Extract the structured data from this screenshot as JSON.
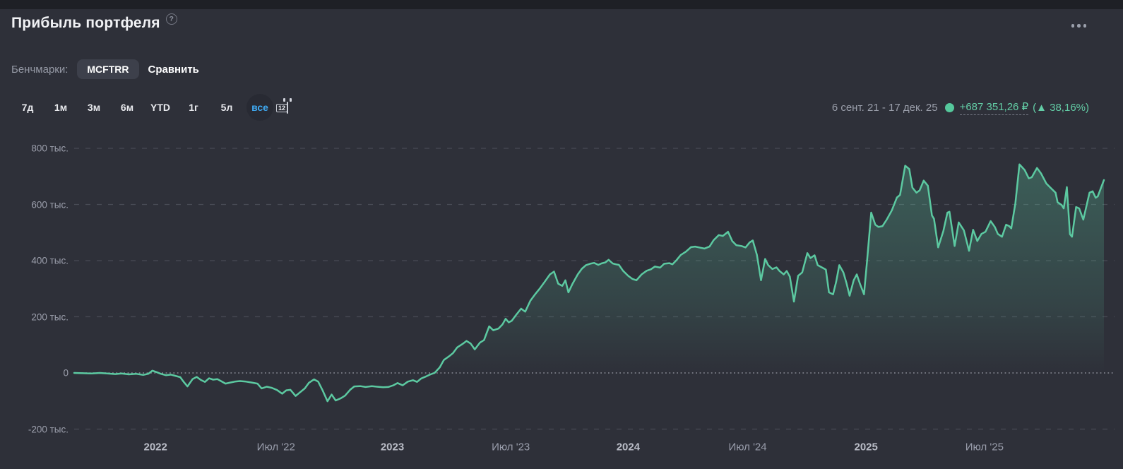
{
  "header": {
    "title": "Прибыль портфеля",
    "help": "?"
  },
  "benchmarks": {
    "label": "Бенчмарки:",
    "selected": "MCFTRR",
    "compare_label": "Сравнить"
  },
  "ranges": {
    "options": [
      "7д",
      "1м",
      "3м",
      "6м",
      "YTD",
      "1г",
      "5л",
      "все"
    ],
    "active": "все",
    "calendar_day": "12"
  },
  "summary": {
    "period": "6 сент. 21 - 17 дек. 25",
    "profit": "+687 351,26 ₽",
    "percent": "(▲ 38,16%)"
  },
  "colors": {
    "accent_green": "#5cc9a1",
    "accent_blue": "#3fa9f1",
    "card_bg": "#2e3039",
    "page_bg": "#1e2026",
    "text_muted": "#9b9eab",
    "text_bright": "#f1f2f5"
  },
  "chart_data": {
    "type": "area",
    "title": "Прибыль портфеля",
    "ylabel": "тыс. ₽",
    "ylim": [
      -280,
      880
    ],
    "grid": "dashed-horizontal",
    "legend": "none",
    "y_ticks": [
      {
        "label": "800 тыс.",
        "value": 800
      },
      {
        "label": "600 тыс.",
        "value": 600
      },
      {
        "label": "400 тыс.",
        "value": 400
      },
      {
        "label": "200 тыс.",
        "value": 200
      },
      {
        "label": "0",
        "value": 0
      },
      {
        "label": "-200 тыс.",
        "value": -200
      }
    ],
    "x_ticks": [
      {
        "label": "2022",
        "f": 0.079,
        "bold": true
      },
      {
        "label": "Июл '22",
        "f": 0.196,
        "bold": false
      },
      {
        "label": "2023",
        "f": 0.309,
        "bold": true
      },
      {
        "label": "Июл '23",
        "f": 0.424,
        "bold": false
      },
      {
        "label": "2024",
        "f": 0.538,
        "bold": true
      },
      {
        "label": "Июл '24",
        "f": 0.654,
        "bold": false
      },
      {
        "label": "2025",
        "f": 0.769,
        "bold": true
      },
      {
        "label": "Июл '25",
        "f": 0.884,
        "bold": false
      }
    ],
    "x_range": {
      "start": "6 сент. 21",
      "end": "17 дек. 25"
    },
    "points": [
      [
        0.0,
        0
      ],
      [
        0.009,
        -1
      ],
      [
        0.017,
        -2
      ],
      [
        0.025,
        0
      ],
      [
        0.032,
        -2
      ],
      [
        0.04,
        -4
      ],
      [
        0.046,
        -2
      ],
      [
        0.053,
        -5
      ],
      [
        0.06,
        -3
      ],
      [
        0.067,
        -7
      ],
      [
        0.072,
        -3
      ],
      [
        0.076,
        8
      ],
      [
        0.08,
        3
      ],
      [
        0.084,
        -3
      ],
      [
        0.089,
        -8
      ],
      [
        0.094,
        -6
      ],
      [
        0.098,
        -10
      ],
      [
        0.103,
        -15
      ],
      [
        0.106,
        -30
      ],
      [
        0.11,
        -48
      ],
      [
        0.115,
        -22
      ],
      [
        0.119,
        -14
      ],
      [
        0.123,
        -25
      ],
      [
        0.127,
        -32
      ],
      [
        0.131,
        -19
      ],
      [
        0.135,
        -24
      ],
      [
        0.139,
        -22
      ],
      [
        0.143,
        -30
      ],
      [
        0.147,
        -38
      ],
      [
        0.152,
        -34
      ],
      [
        0.156,
        -31
      ],
      [
        0.161,
        -29
      ],
      [
        0.167,
        -31
      ],
      [
        0.172,
        -34
      ],
      [
        0.178,
        -38
      ],
      [
        0.182,
        -55
      ],
      [
        0.187,
        -49
      ],
      [
        0.192,
        -53
      ],
      [
        0.197,
        -61
      ],
      [
        0.202,
        -74
      ],
      [
        0.206,
        -62
      ],
      [
        0.21,
        -60
      ],
      [
        0.215,
        -82
      ],
      [
        0.219,
        -70
      ],
      [
        0.224,
        -55
      ],
      [
        0.228,
        -35
      ],
      [
        0.233,
        -23
      ],
      [
        0.237,
        -31
      ],
      [
        0.241,
        -60
      ],
      [
        0.246,
        -101
      ],
      [
        0.25,
        -77
      ],
      [
        0.254,
        -98
      ],
      [
        0.259,
        -90
      ],
      [
        0.263,
        -81
      ],
      [
        0.268,
        -60
      ],
      [
        0.272,
        -48
      ],
      [
        0.278,
        -47
      ],
      [
        0.283,
        -50
      ],
      [
        0.289,
        -47
      ],
      [
        0.294,
        -49
      ],
      [
        0.3,
        -51
      ],
      [
        0.305,
        -50
      ],
      [
        0.31,
        -44
      ],
      [
        0.314,
        -36
      ],
      [
        0.319,
        -44
      ],
      [
        0.324,
        -31
      ],
      [
        0.329,
        -26
      ],
      [
        0.333,
        -32
      ],
      [
        0.337,
        -20
      ],
      [
        0.342,
        -12
      ],
      [
        0.346,
        -5
      ],
      [
        0.35,
        0
      ],
      [
        0.355,
        20
      ],
      [
        0.359,
        46
      ],
      [
        0.364,
        59
      ],
      [
        0.368,
        71
      ],
      [
        0.372,
        91
      ],
      [
        0.377,
        103
      ],
      [
        0.381,
        114
      ],
      [
        0.385,
        105
      ],
      [
        0.389,
        84
      ],
      [
        0.394,
        108
      ],
      [
        0.398,
        117
      ],
      [
        0.403,
        166
      ],
      [
        0.407,
        152
      ],
      [
        0.412,
        158
      ],
      [
        0.416,
        173
      ],
      [
        0.419,
        193
      ],
      [
        0.422,
        180
      ],
      [
        0.425,
        186
      ],
      [
        0.429,
        206
      ],
      [
        0.434,
        229
      ],
      [
        0.438,
        218
      ],
      [
        0.443,
        257
      ],
      [
        0.448,
        282
      ],
      [
        0.452,
        300
      ],
      [
        0.457,
        325
      ],
      [
        0.462,
        351
      ],
      [
        0.466,
        361
      ],
      [
        0.47,
        318
      ],
      [
        0.474,
        310
      ],
      [
        0.477,
        330
      ],
      [
        0.48,
        287
      ],
      [
        0.484,
        318
      ],
      [
        0.489,
        351
      ],
      [
        0.493,
        371
      ],
      [
        0.497,
        384
      ],
      [
        0.501,
        389
      ],
      [
        0.505,
        392
      ],
      [
        0.509,
        385
      ],
      [
        0.512,
        390
      ],
      [
        0.516,
        394
      ],
      [
        0.519,
        403
      ],
      [
        0.523,
        390
      ],
      [
        0.526,
        387
      ],
      [
        0.529,
        385
      ],
      [
        0.533,
        364
      ],
      [
        0.538,
        346
      ],
      [
        0.542,
        335
      ],
      [
        0.546,
        330
      ],
      [
        0.551,
        351
      ],
      [
        0.556,
        364
      ],
      [
        0.56,
        369
      ],
      [
        0.564,
        379
      ],
      [
        0.569,
        375
      ],
      [
        0.573,
        389
      ],
      [
        0.578,
        391
      ],
      [
        0.581,
        387
      ],
      [
        0.585,
        402
      ],
      [
        0.589,
        420
      ],
      [
        0.594,
        432
      ],
      [
        0.599,
        448
      ],
      [
        0.603,
        450
      ],
      [
        0.608,
        446
      ],
      [
        0.612,
        443
      ],
      [
        0.617,
        450
      ],
      [
        0.621,
        473
      ],
      [
        0.626,
        491
      ],
      [
        0.63,
        488
      ],
      [
        0.635,
        503
      ],
      [
        0.639,
        470
      ],
      [
        0.643,
        455
      ],
      [
        0.648,
        452
      ],
      [
        0.652,
        447
      ],
      [
        0.656,
        465
      ],
      [
        0.659,
        472
      ],
      [
        0.663,
        420
      ],
      [
        0.667,
        330
      ],
      [
        0.671,
        406
      ],
      [
        0.674,
        384
      ],
      [
        0.678,
        370
      ],
      [
        0.682,
        376
      ],
      [
        0.685,
        363
      ],
      [
        0.689,
        351
      ],
      [
        0.692,
        363
      ],
      [
        0.695,
        343
      ],
      [
        0.699,
        254
      ],
      [
        0.703,
        346
      ],
      [
        0.707,
        358
      ],
      [
        0.712,
        427
      ],
      [
        0.715,
        409
      ],
      [
        0.719,
        419
      ],
      [
        0.722,
        384
      ],
      [
        0.726,
        376
      ],
      [
        0.73,
        368
      ],
      [
        0.733,
        287
      ],
      [
        0.737,
        280
      ],
      [
        0.74,
        325
      ],
      [
        0.743,
        384
      ],
      [
        0.747,
        358
      ],
      [
        0.75,
        320
      ],
      [
        0.753,
        275
      ],
      [
        0.757,
        330
      ],
      [
        0.76,
        351
      ],
      [
        0.763,
        318
      ],
      [
        0.767,
        280
      ],
      [
        0.77,
        401
      ],
      [
        0.774,
        571
      ],
      [
        0.778,
        528
      ],
      [
        0.781,
        520
      ],
      [
        0.785,
        523
      ],
      [
        0.789,
        546
      ],
      [
        0.794,
        579
      ],
      [
        0.799,
        625
      ],
      [
        0.802,
        634
      ],
      [
        0.807,
        738
      ],
      [
        0.811,
        726
      ],
      [
        0.814,
        660
      ],
      [
        0.818,
        642
      ],
      [
        0.821,
        650
      ],
      [
        0.825,
        685
      ],
      [
        0.829,
        667
      ],
      [
        0.833,
        561
      ],
      [
        0.835,
        549
      ],
      [
        0.839,
        447
      ],
      [
        0.844,
        505
      ],
      [
        0.848,
        571
      ],
      [
        0.85,
        574
      ],
      [
        0.855,
        452
      ],
      [
        0.859,
        536
      ],
      [
        0.864,
        508
      ],
      [
        0.869,
        435
      ],
      [
        0.873,
        510
      ],
      [
        0.877,
        470
      ],
      [
        0.881,
        495
      ],
      [
        0.885,
        503
      ],
      [
        0.89,
        541
      ],
      [
        0.894,
        520
      ],
      [
        0.897,
        495
      ],
      [
        0.901,
        485
      ],
      [
        0.905,
        528
      ],
      [
        0.908,
        523
      ],
      [
        0.91,
        515
      ],
      [
        0.914,
        604
      ],
      [
        0.918,
        743
      ],
      [
        0.923,
        723
      ],
      [
        0.927,
        693
      ],
      [
        0.93,
        697
      ],
      [
        0.935,
        730
      ],
      [
        0.939,
        710
      ],
      [
        0.944,
        675
      ],
      [
        0.948,
        660
      ],
      [
        0.953,
        642
      ],
      [
        0.955,
        608
      ],
      [
        0.959,
        598
      ],
      [
        0.961,
        586
      ],
      [
        0.964,
        662
      ],
      [
        0.967,
        494
      ],
      [
        0.969,
        485
      ],
      [
        0.973,
        591
      ],
      [
        0.976,
        586
      ],
      [
        0.98,
        546
      ],
      [
        0.986,
        642
      ],
      [
        0.989,
        647
      ],
      [
        0.992,
        624
      ],
      [
        0.994,
        629
      ],
      [
        1.0,
        687
      ]
    ]
  }
}
